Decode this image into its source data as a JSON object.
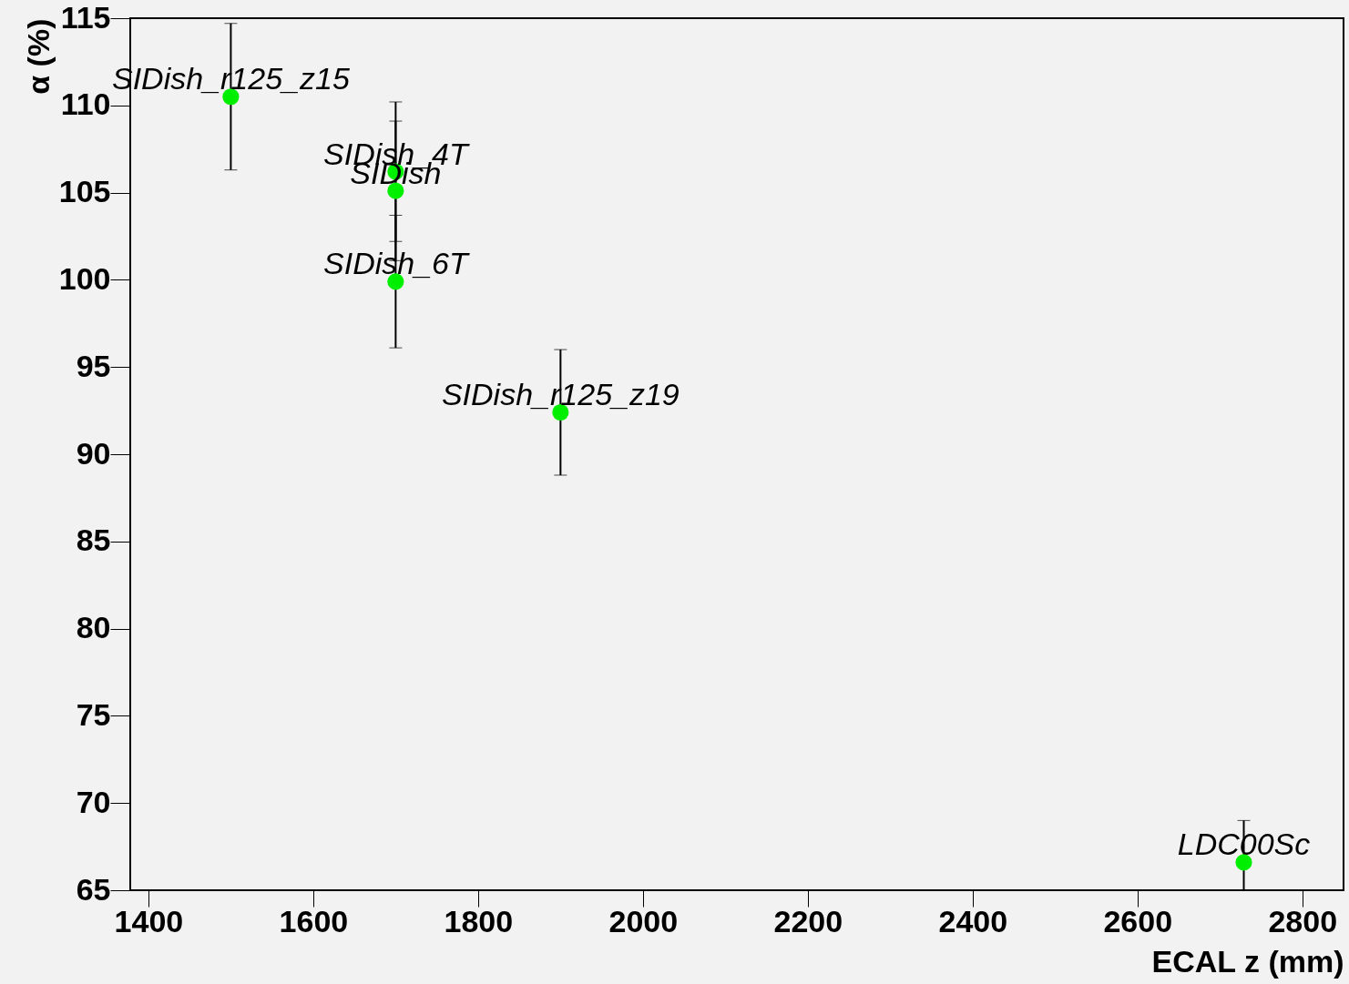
{
  "chart_data": {
    "type": "scatter",
    "xlabel": "ECAL z (mm)",
    "ylabel": "α (%)",
    "x": [
      1500,
      1700,
      1700,
      1700,
      1900,
      2729
    ],
    "values": [
      110.5,
      106.2,
      105.1,
      99.9,
      92.4,
      66.6
    ],
    "errors": [
      4.2,
      4.0,
      4.0,
      3.8,
      3.6,
      [
        65,
        69.0
      ]
    ],
    "color": "#00ee00",
    "marker": "circle",
    "grid": false,
    "xlim": [
      1378,
      2850
    ],
    "xticks": [
      1400,
      1600,
      1800,
      2000,
      2200,
      2400,
      2600,
      2800
    ],
    "ylim": [
      65,
      115
    ],
    "yticks": [
      65,
      70,
      75,
      80,
      85,
      90,
      95,
      100,
      105,
      110,
      115
    ],
    "annotations": [
      {
        "text": "SIDish_r125_z15",
        "x": 1500,
        "y": 110.5
      },
      {
        "text": "SIDish_4T",
        "x": 1700,
        "y": 106.2
      },
      {
        "text": "SIDish",
        "x": 1700,
        "y": 105.1
      },
      {
        "text": "SIDish_6T",
        "x": 1700,
        "y": 99.9
      },
      {
        "text": "SIDish_r125_z19",
        "x": 1900,
        "y": 92.4
      },
      {
        "text": "LDC00Sc",
        "x": 2729,
        "y": 66.6
      }
    ]
  }
}
